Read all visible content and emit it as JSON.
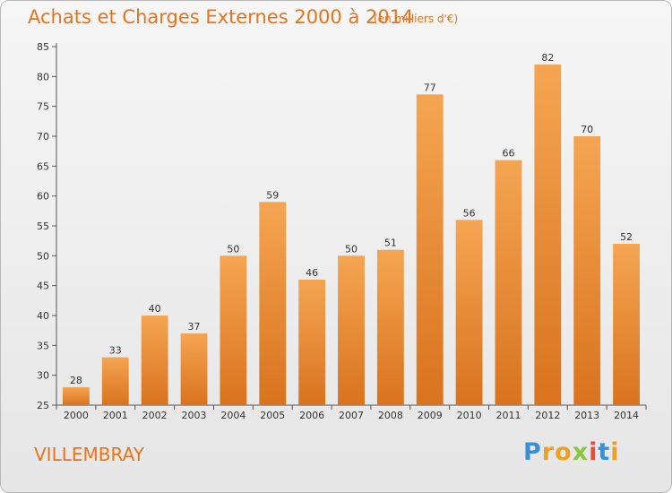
{
  "chart_data": {
    "type": "bar",
    "title": "Achats et Charges Externes 2000 à 2014",
    "subtitle": "(en milliers d'€)",
    "categories": [
      "2000",
      "2001",
      "2002",
      "2003",
      "2004",
      "2005",
      "2006",
      "2007",
      "2008",
      "2009",
      "2010",
      "2011",
      "2012",
      "2013",
      "2014"
    ],
    "values": [
      28,
      33,
      40,
      37,
      50,
      59,
      46,
      50,
      51,
      77,
      56,
      66,
      82,
      70,
      52
    ],
    "ylim": [
      25,
      85
    ],
    "yticks": [
      25,
      30,
      35,
      40,
      45,
      50,
      55,
      60,
      65,
      70,
      75,
      80,
      85
    ],
    "bar_color_top": "#f5a552",
    "bar_color_bottom": "#d9731f",
    "grid": false
  },
  "footer": {
    "commune": "VILLEMBRAY",
    "brand_letters": [
      {
        "ch": "P",
        "color": "#3a8fd0"
      },
      {
        "ch": "r",
        "color": "#f0a020"
      },
      {
        "ch": "o",
        "color": "#f0a020"
      },
      {
        "ch": "x",
        "color": "#8cc63f"
      },
      {
        "ch": "i",
        "color": "#e84c3d"
      },
      {
        "ch": "t",
        "color": "#3a8fd0"
      },
      {
        "ch": "i",
        "color": "#f0a020"
      }
    ]
  }
}
